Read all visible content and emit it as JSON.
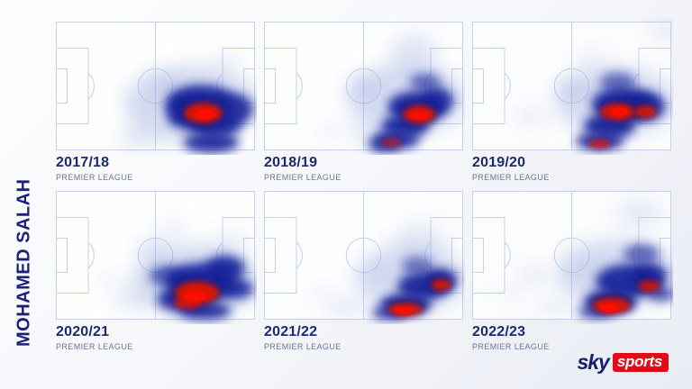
{
  "player_name": "MOHAMED SALAH",
  "logo": {
    "sky": "sky",
    "sports": "sports"
  },
  "palette": {
    "heat_halo": "#93a5da",
    "heat_navy": "#18249a",
    "heat_deep": "#12126e",
    "heat_red": "#e01304",
    "heat_core": "#ff0f00",
    "pitch_line": "#c7d1e4",
    "title_navy": "#1b2178",
    "season_navy": "#1c2a70",
    "league_gray": "#68749a",
    "sky_navy": "#13216f",
    "sports_red": "#e30b17"
  },
  "chart_data": {
    "type": "heatmap",
    "title": "MOHAMED SALAH",
    "layout": "2 rows x 3 columns of football pitch touch heatmaps, attacking left-to-right, heat concentrated around right penalty area",
    "units": "blob entries are [x_pct, y_pct, rx_pct, ry_pct, opacity] relative to pitch top-left",
    "panels": [
      {
        "season": "2017/18",
        "league": "PREMIER LEAGUE",
        "peak": {
          "x": 75,
          "y": 72
        },
        "blobs": {
          "halo": [
            [
              68,
              64,
              34,
              30,
              0.4
            ],
            [
              41,
              90,
              10,
              7,
              0.3
            ],
            [
              55,
              53,
              9,
              8,
              0.26
            ],
            [
              86,
              30,
              8,
              8,
              0.14
            ]
          ],
          "navy": [
            [
              73,
              62,
              17,
              13,
              0.95
            ],
            [
              68,
              74,
              12,
              10,
              0.92
            ],
            [
              80,
              79,
              13,
              11,
              0.92
            ],
            [
              78,
              94,
              14,
              8,
              0.9
            ],
            [
              90,
              68,
              9,
              12,
              0.88
            ],
            [
              63,
              67,
              8,
              7,
              0.85
            ]
          ],
          "deep": [
            [
              74,
              71,
              11,
              9.5,
              0.6
            ]
          ],
          "red": [
            [
              74,
              71,
              9.5,
              8,
              0.96
            ]
          ],
          "core": [
            [
              75,
              72,
              5,
              4,
              1
            ]
          ]
        }
      },
      {
        "season": "2018/19",
        "league": "PREMIER LEAGUE",
        "peak": {
          "x": 78,
          "y": 74
        },
        "blobs": {
          "halo": [
            [
              72,
              60,
              30,
              28,
              0.38
            ],
            [
              75,
              24,
              12,
              15,
              0.26
            ],
            [
              50,
              51,
              8,
              7,
              0.32
            ],
            [
              57,
              88,
              14,
              9,
              0.24
            ],
            [
              33,
              85,
              8,
              5,
              0.14
            ]
          ],
          "navy": [
            [
              77,
              66,
              15,
              12,
              0.95
            ],
            [
              71,
              81,
              12,
              9,
              0.92
            ],
            [
              66,
              92,
              12,
              7,
              0.9
            ],
            [
              87,
              61,
              8,
              10,
              0.85
            ],
            [
              81,
              47,
              8,
              7,
              0.62
            ],
            [
              60,
              96,
              8,
              5,
              0.8
            ]
          ],
          "deep": [
            [
              78,
              72,
              9,
              8,
              0.62
            ]
          ],
          "red": [
            [
              78,
              72,
              8,
              6.8,
              0.96
            ],
            [
              64,
              94,
              5,
              3,
              0.7
            ]
          ],
          "core": [
            [
              78,
              73,
              4.2,
              3.4,
              1
            ]
          ]
        }
      },
      {
        "season": "2019/20",
        "league": "PREMIER LEAGUE",
        "peak": {
          "x": 74,
          "y": 70
        },
        "blobs": {
          "halo": [
            [
              72,
              62,
              30,
              27,
              0.38
            ],
            [
              50,
              52,
              8,
              7,
              0.3
            ],
            [
              30,
              74,
              9,
              6,
              0.18
            ],
            [
              60,
              30,
              9,
              8,
              0.14
            ],
            [
              97,
              6,
              7,
              7,
              0.25
            ]
          ],
          "navy": [
            [
              76,
              64,
              16,
              13,
              0.95
            ],
            [
              69,
              81,
              13,
              10,
              0.92
            ],
            [
              64,
              93,
              12,
              7,
              0.9
            ],
            [
              88,
              66,
              9,
              11,
              0.88
            ],
            [
              73,
              47,
              9,
              8,
              0.58
            ]
          ],
          "deep": [
            [
              76,
              70,
              12,
              8,
              0.62
            ]
          ],
          "red": [
            [
              73,
              70,
              8.5,
              6.5,
              0.96
            ],
            [
              87,
              70,
              5.5,
              5,
              0.9
            ],
            [
              64,
              95,
              5.5,
              3.2,
              0.85
            ]
          ],
          "core": [
            [
              74,
              70,
              4.5,
              3.5,
              1
            ]
          ]
        }
      },
      {
        "season": "2020/21",
        "league": "PREMIER LEAGUE",
        "peak": {
          "x": 70,
          "y": 82
        },
        "blobs": {
          "halo": [
            [
              70,
              70,
              32,
              28,
              0.42
            ],
            [
              48,
              46,
              8,
              7,
              0.32
            ],
            [
              37,
              85,
              10,
              6,
              0.26
            ],
            [
              27,
              69,
              7,
              5,
              0.16
            ],
            [
              58,
              30,
              10,
              8,
              0.14
            ],
            [
              88,
              40,
              9,
              8,
              0.18
            ]
          ],
          "navy": [
            [
              73,
              70,
              18,
              14,
              0.95
            ],
            [
              64,
              84,
              13,
              10,
              0.92
            ],
            [
              85,
              60,
              10,
              10,
              0.9
            ],
            [
              90,
              76,
              9,
              8,
              0.88
            ],
            [
              56,
              66,
              9,
              8,
              0.68
            ],
            [
              75,
              93,
              13,
              7,
              0.9
            ]
          ],
          "deep": [
            [
              71,
              79,
              13,
              10,
              0.65
            ]
          ],
          "red": [
            [
              71,
              79,
              11,
              8.5,
              0.97
            ],
            [
              66,
              87,
              7,
              5,
              0.85
            ]
          ],
          "core": [
            [
              70,
              82,
              6,
              4.2,
              1
            ]
          ]
        }
      },
      {
        "season": "2021/22",
        "league": "PREMIER LEAGUE",
        "peak": {
          "x": 70,
          "y": 93
        },
        "blobs": {
          "halo": [
            [
              74,
              68,
              28,
              26,
              0.36
            ],
            [
              78,
              40,
              13,
              14,
              0.22
            ],
            [
              42,
              90,
              10,
              6,
              0.24
            ],
            [
              29,
              79,
              7,
              5,
              0.14
            ],
            [
              58,
              62,
              9,
              7,
              0.14
            ]
          ],
          "navy": [
            [
              80,
              74,
              13,
              11,
              0.92
            ],
            [
              71,
              88,
              13,
              8,
              0.92
            ],
            [
              89,
              69,
              8,
              9,
              0.88
            ],
            [
              63,
              95,
              9,
              5,
              0.85
            ],
            [
              77,
              58,
              8,
              7,
              0.55
            ]
          ],
          "deep": [
            [
              72,
              90,
              10,
              6,
              0.6
            ],
            [
              89,
              72,
              6,
              5,
              0.55
            ]
          ],
          "red": [
            [
              71,
              92,
              8.5,
              5,
              0.96
            ],
            [
              89,
              73,
              5,
              4.5,
              0.9
            ]
          ],
          "core": [
            [
              70,
              93,
              4.5,
              3,
              1
            ]
          ]
        }
      },
      {
        "season": "2022/23",
        "league": "PREMIER LEAGUE",
        "peak": {
          "x": 69,
          "y": 91
        },
        "blobs": {
          "halo": [
            [
              73,
              64,
              30,
              26,
              0.38
            ],
            [
              84,
              18,
              11,
              11,
              0.2
            ],
            [
              31,
              66,
              9,
              6,
              0.2
            ],
            [
              42,
              90,
              9,
              5,
              0.22
            ],
            [
              55,
              58,
              9,
              7,
              0.14
            ],
            [
              20,
              78,
              7,
              5,
              0.12
            ]
          ],
          "navy": [
            [
              78,
              70,
              16,
              13,
              0.93
            ],
            [
              69,
              86,
              13,
              9,
              0.92
            ],
            [
              89,
              66,
              9,
              10,
              0.88
            ],
            [
              85,
              49,
              9,
              8,
              0.62
            ],
            [
              62,
              94,
              9,
              5,
              0.8
            ],
            [
              95,
              80,
              7,
              6,
              0.7
            ]
          ],
          "deep": [
            [
              71,
              87,
              11,
              8,
              0.62
            ],
            [
              89,
              73,
              6,
              5,
              0.5
            ]
          ],
          "red": [
            [
              70,
              89,
              9.5,
              6,
              0.96
            ],
            [
              89,
              74,
              5.5,
              4.5,
              0.85
            ]
          ],
          "core": [
            [
              69,
              91,
              5,
              3.5,
              1
            ]
          ]
        }
      }
    ]
  }
}
